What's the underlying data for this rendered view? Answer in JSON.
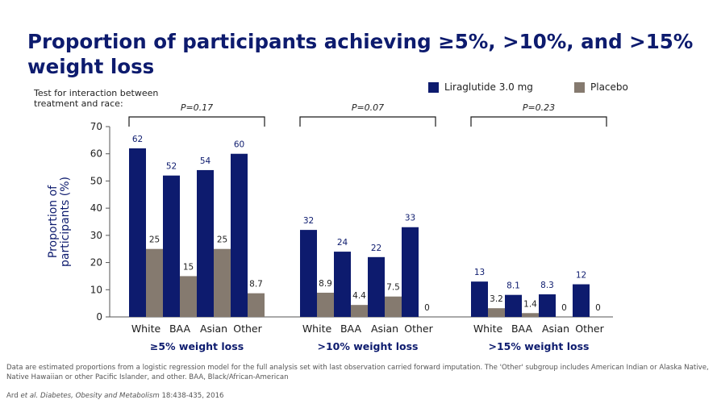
{
  "title": "Proportion of participants achieving ≥5%, >10%, and >15% weight loss",
  "interaction_note": "Test for interaction between treatment and race:",
  "legend": [
    {
      "label": "Liraglutide 3.0 mg",
      "color": "#0d1b6e"
    },
    {
      "label": "Placebo",
      "color": "#857a6f"
    }
  ],
  "chart_data": {
    "type": "bar",
    "ylabel": "Proportion of participants (%)",
    "ylim": [
      0,
      70
    ],
    "yticks": [
      0,
      10,
      20,
      30,
      40,
      50,
      60,
      70
    ],
    "categories": [
      "White",
      "BAA",
      "Asian",
      "Other"
    ],
    "groups": [
      {
        "label": "≥5% weight loss",
        "p_value": "P=0.17",
        "series": [
          {
            "name": "Liraglutide 3.0 mg",
            "values": [
              62,
              52,
              54,
              60
            ],
            "labels": [
              "62",
              "52",
              "54",
              "60"
            ]
          },
          {
            "name": "Placebo",
            "values": [
              25,
              15,
              25,
              8.7
            ],
            "labels": [
              "25",
              "15",
              "25",
              "8.7"
            ]
          }
        ]
      },
      {
        "label": ">10% weight loss",
        "p_value": "P=0.07",
        "series": [
          {
            "name": "Liraglutide 3.0 mg",
            "values": [
              32,
              24,
              22,
              33
            ],
            "labels": [
              "32",
              "24",
              "22",
              "33"
            ]
          },
          {
            "name": "Placebo",
            "values": [
              8.9,
              4.4,
              7.5,
              0
            ],
            "labels": [
              "8.9",
              "4.4",
              "7.5",
              "0"
            ]
          }
        ]
      },
      {
        "label": ">15% weight loss",
        "p_value": "P=0.23",
        "series": [
          {
            "name": "Liraglutide 3.0 mg",
            "values": [
              13,
              8.1,
              8.3,
              12
            ],
            "labels": [
              "13",
              "8.1",
              "8.3",
              "12"
            ]
          },
          {
            "name": "Placebo",
            "values": [
              3.2,
              1.4,
              0,
              0
            ],
            "labels": [
              "3.2",
              "1.4",
              "0",
              "0"
            ]
          }
        ]
      }
    ],
    "colors": {
      "liraglutide": "#0d1b6e",
      "placebo": "#857a6f"
    }
  },
  "footnote": "Data are estimated proportions from a logistic regression model for the full analysis set with last observation carried forward imputation. The 'Other' subgroup includes American Indian or Alaska Native, Native Hawaiian or other Pacific Islander, and other. BAA, Black/African-American",
  "citation": {
    "authors": "Ard ",
    "etal": "et al.",
    "journal": "Diabetes, Obesity and Metabolism",
    "details": " 18:438-435, 2016"
  }
}
